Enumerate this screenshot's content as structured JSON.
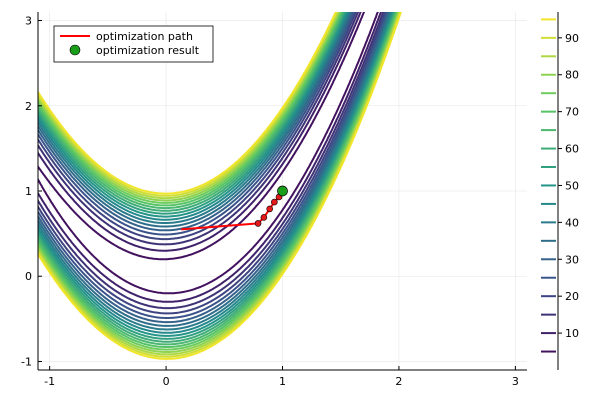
{
  "chart_data": {
    "type": "contour",
    "title": "",
    "xlabel": "",
    "ylabel": "",
    "xlim": [
      -1.1,
      3.1
    ],
    "ylim": [
      -1.1,
      3.1
    ],
    "x_ticks": [
      -1,
      0,
      1,
      2,
      3
    ],
    "y_ticks": [
      -1,
      0,
      1,
      2,
      3
    ],
    "grid": true,
    "legend_position": "top-left",
    "contour": {
      "function": "(1 - x)^2 + 100 (y - x^2)^2",
      "levels": [
        5,
        10,
        15,
        20,
        25,
        30,
        35,
        40,
        45,
        50,
        55,
        60,
        65,
        70,
        75,
        80,
        85,
        90,
        95
      ],
      "colorbar_ticks": [
        10,
        20,
        30,
        40,
        50,
        60,
        70,
        80,
        90
      ],
      "colorbar_range": [
        0,
        97
      ],
      "colormap": [
        "#440154",
        "#3b528b",
        "#21918c",
        "#5ec962",
        "#fde725"
      ]
    },
    "series": [
      {
        "name": "optimization path",
        "kind": "line",
        "color": "#ff0000",
        "points": [
          [
            0.13,
            0.55
          ],
          [
            0.79,
            0.62
          ],
          [
            0.84,
            0.69
          ],
          [
            0.89,
            0.79
          ],
          [
            0.93,
            0.87
          ],
          [
            0.97,
            0.93
          ],
          [
            1.0,
            1.0
          ]
        ],
        "markers": [
          [
            0.79,
            0.62
          ],
          [
            0.84,
            0.69
          ],
          [
            0.89,
            0.79
          ],
          [
            0.93,
            0.87
          ],
          [
            0.97,
            0.93
          ]
        ],
        "marker_color": "#e31a1c"
      },
      {
        "name": "optimization result",
        "kind": "scatter",
        "color": "#1a9e1a",
        "points": [
          [
            1.0,
            1.0
          ]
        ]
      }
    ]
  }
}
